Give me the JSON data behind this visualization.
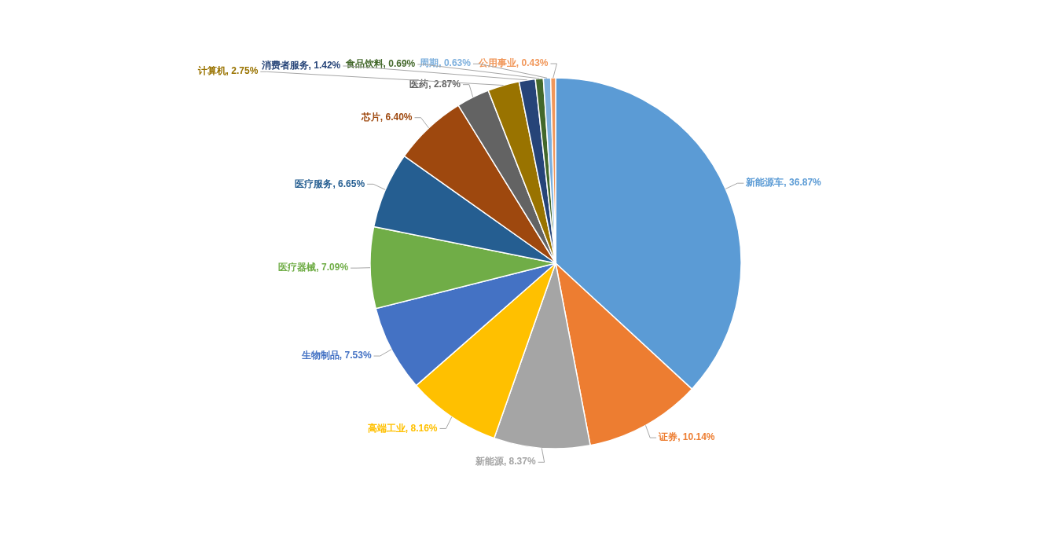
{
  "chart_data": {
    "type": "pie",
    "categories": [
      "新能源车",
      "证券",
      "新能源",
      "高端工业",
      "生物制品",
      "医疗器械",
      "医疗服务",
      "芯片",
      "医药",
      "计算机",
      "消费者服务",
      "食品饮料",
      "周期",
      "公用事业"
    ],
    "values": [
      36.87,
      10.14,
      8.37,
      8.16,
      7.53,
      7.09,
      6.65,
      6.4,
      2.87,
      2.75,
      1.42,
      0.69,
      0.63,
      0.43
    ],
    "value_labels": [
      ", 36.87%",
      ", 10.14%",
      ", 8.37%",
      ", 8.16%",
      ", 7.53%",
      ", 7.09%",
      ", 6.65%",
      ", 6.40%",
      ", 2.87%",
      ", 2.75%",
      ", 1.42%",
      ", 0.69%",
      ", 0.63%",
      ", 0.43%"
    ],
    "colors": [
      "#5b9bd5",
      "#ed7d31",
      "#a5a5a5",
      "#ffc000",
      "#4472c4",
      "#70ad47",
      "#255e91",
      "#9e480e",
      "#636363",
      "#997300",
      "#264478",
      "#43682b",
      "#7cafdd",
      "#f1975a"
    ]
  }
}
